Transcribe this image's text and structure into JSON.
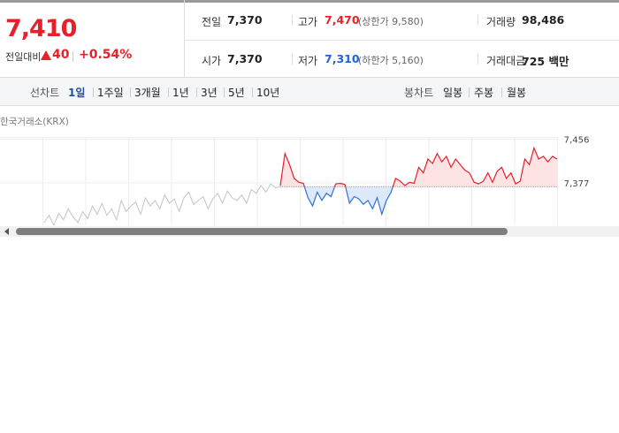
{
  "summary": {
    "price": "7,410",
    "change_label": "전일대비",
    "change": "40",
    "change_rate": "+0.54%"
  },
  "stats": [
    {
      "label": "전일",
      "value": "7,370"
    },
    {
      "label": "고가",
      "value": "7,470",
      "note": "(상한가 9,580)"
    },
    {
      "label": "거래량",
      "value": "98,486"
    },
    {
      "label": "시가",
      "value": "7,370"
    },
    {
      "label": "저가",
      "value": "7,310",
      "note": "(하한가 5,160)"
    },
    {
      "label": "거래대금",
      "value": "725 백만"
    }
  ],
  "tabs": {
    "line_chart": "선차트",
    "periods": [
      "1일",
      "1주일",
      "3개월",
      "1년",
      "3년",
      "5년",
      "10년"
    ],
    "candle_chart": "봉차트",
    "candle_periods": [
      "일봉",
      "주봉",
      "월봉"
    ]
  },
  "source": "한국거래소(KRX)",
  "chart_data": {
    "type": "line",
    "ylim": [
      7300,
      7460
    ],
    "yticks": [
      {
        "value": 7456,
        "label": "7,456"
      },
      {
        "value": 7377,
        "label": "7,377"
      }
    ],
    "reference_line": 7370,
    "grid": true,
    "series": [
      {
        "color": "#c4c4c4",
        "values": [
          7305,
          7318,
          7300,
          7322,
          7310,
          7330,
          7315,
          7305,
          7325,
          7312,
          7335,
          7320,
          7340,
          7318,
          7330,
          7310,
          7345,
          7325,
          7335,
          7342,
          7320,
          7350,
          7335,
          7345,
          7330,
          7355,
          7340,
          7348,
          7325,
          7350,
          7360,
          7338,
          7345,
          7352,
          7330,
          7348,
          7358,
          7340,
          7362,
          7350,
          7345,
          7355,
          7340,
          7365,
          7358,
          7372,
          7360,
          7375,
          7368,
          7370
        ]
      },
      {
        "color_up": "#e8202a",
        "color_down": "#3370d8",
        "values": [
          7372,
          7430,
          7410,
          7385,
          7378,
          7376,
          7350,
          7335,
          7360,
          7345,
          7358,
          7352,
          7375,
          7376,
          7374,
          7340,
          7352,
          7348,
          7338,
          7345,
          7330,
          7350,
          7320,
          7345,
          7360,
          7385,
          7380,
          7372,
          7378,
          7376,
          7405,
          7395,
          7420,
          7412,
          7430,
          7415,
          7425,
          7405,
          7420,
          7410,
          7400,
          7395,
          7378,
          7375,
          7380,
          7395,
          7378,
          7398,
          7405,
          7385,
          7395,
          7375,
          7380,
          7420,
          7410,
          7440,
          7420,
          7425,
          7415,
          7425,
          7420
        ]
      }
    ]
  }
}
